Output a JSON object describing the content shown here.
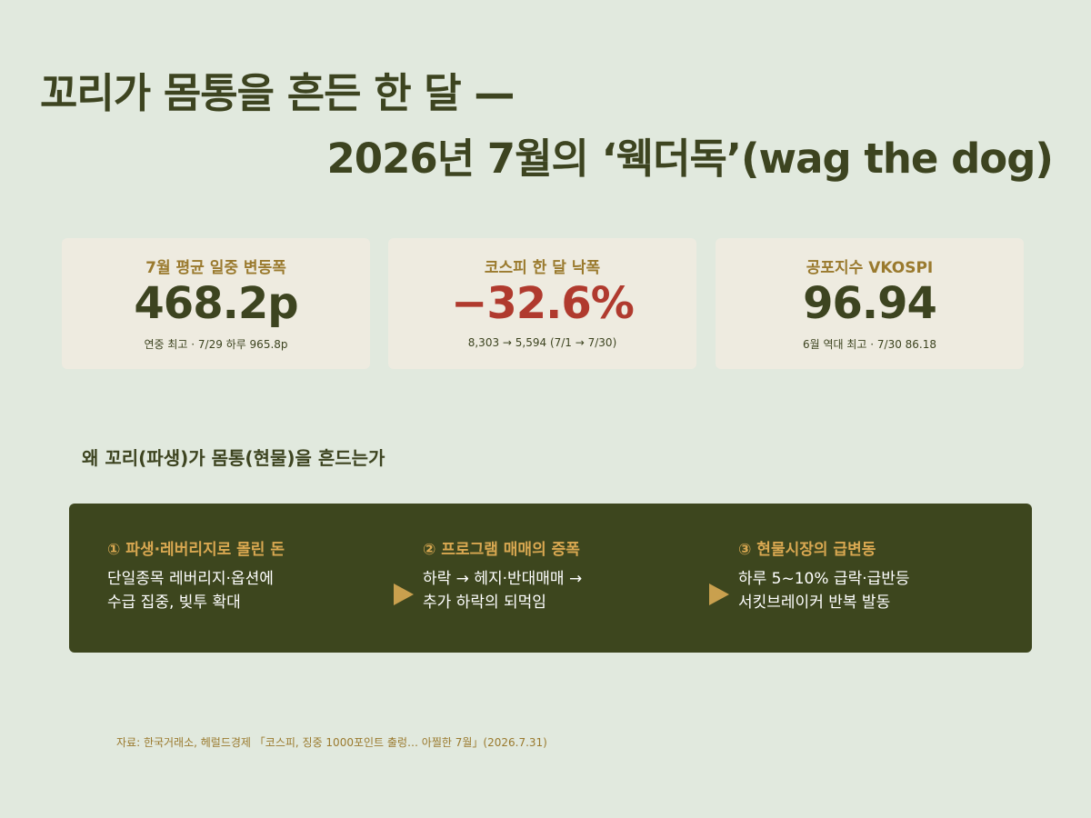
{
  "header": {
    "title_line1": "꼬리가 몸통을 흔든 한 달 —",
    "title_line2": "2026년 7월의 ‘웩더독’(wag the dog)"
  },
  "stats": [
    {
      "label": "7월 평균 일중 변동폭",
      "value": "468.2p",
      "note": "연중 최고 · 7/29 하루 965.8p"
    },
    {
      "label": "코스피 한 달 낙폭",
      "value": "−32.6%",
      "note": "8,303 → 5,594 (7/1 → 7/30)"
    },
    {
      "label": "공포지수 VKOSPI",
      "value": "96.94",
      "note": "6월 역대 최고 · 7/30 86.18"
    }
  ],
  "section": {
    "heading": "왜 꼬리(파생)가 몸통(현물)을 흔드는가",
    "steps": [
      {
        "title": "① 파생·레버리지로 몰린 돈",
        "lines": [
          "단일종목 레버리지·옵션에",
          "수급 집중, 빚투 확대"
        ]
      },
      {
        "title": "② 프로그램 매매의 증폭",
        "lines": [
          "하락 → 헤지·반대매매 →",
          "추가 하락의 되먹임"
        ]
      },
      {
        "title": "③ 현물시장의 급변동",
        "lines": [
          "하루 5~10% 급락·급반등",
          "서킷브레이커 반복 발동"
        ]
      }
    ]
  },
  "source": "자료: 한국거래소, 헤럴드경제 「코스피, 징중 1000포인트 출렁… 아찔한 7월」(2026.7.31)"
}
